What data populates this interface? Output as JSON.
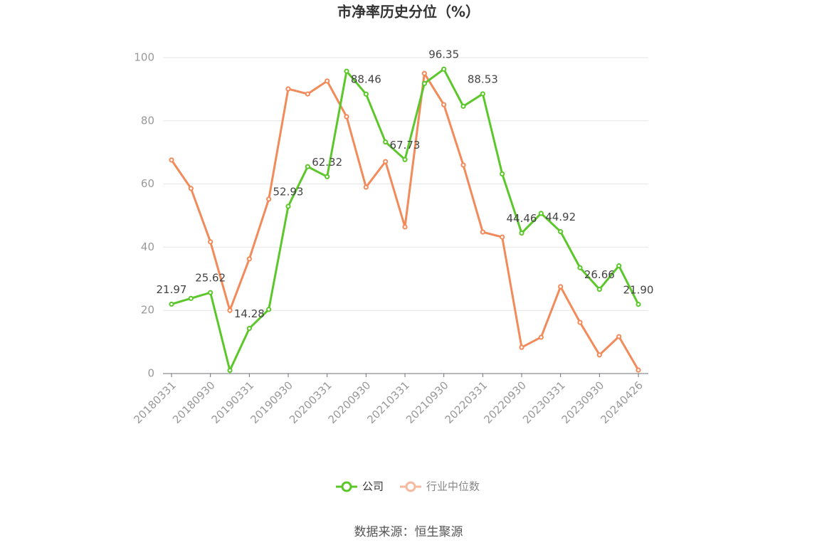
{
  "chart_data": {
    "type": "line",
    "title": "市净率历史分位（%）",
    "categories": [
      "20180331",
      null,
      "20180930",
      null,
      "20190331",
      null,
      "20190930",
      null,
      "20200331",
      null,
      "20200930",
      null,
      "20210331",
      null,
      "20210930",
      null,
      "20220331",
      null,
      "20220930",
      null,
      "20230331",
      null,
      "20230930",
      null,
      "20240426"
    ],
    "series": [
      {
        "name": "公司",
        "color": "#5cc72a",
        "values": [
          21.97,
          23.8,
          25.62,
          1.0,
          14.28,
          20.3,
          52.93,
          65.5,
          62.32,
          95.7,
          88.46,
          73.3,
          67.73,
          91.8,
          96.35,
          84.6,
          88.53,
          63.2,
          44.46,
          50.7,
          44.92,
          33.5,
          26.66,
          34.1,
          21.9
        ],
        "value_labels": [
          "21.97",
          null,
          "25.62",
          null,
          "14.28",
          null,
          "52.93",
          null,
          "62.32",
          null,
          "88.46",
          null,
          "67.73",
          null,
          "96.35",
          null,
          "88.53",
          null,
          "44.46",
          null,
          "44.92",
          null,
          "26.66",
          null,
          "21.90"
        ]
      },
      {
        "name": "行业中位数",
        "color": "#f28a5a",
        "values": [
          67.6,
          58.6,
          41.7,
          20.0,
          36.3,
          55.2,
          90.1,
          88.5,
          92.6,
          81.3,
          59.0,
          67.1,
          46.4,
          95.0,
          85.1,
          66.0,
          44.8,
          43.2,
          8.3,
          11.5,
          27.5,
          16.2,
          5.9,
          11.7,
          1.1
        ]
      }
    ],
    "ylim": [
      0,
      100
    ],
    "yticks": [
      0,
      20,
      40,
      60,
      80,
      100
    ],
    "grid": true,
    "source": "数据来源：恒生聚源"
  }
}
